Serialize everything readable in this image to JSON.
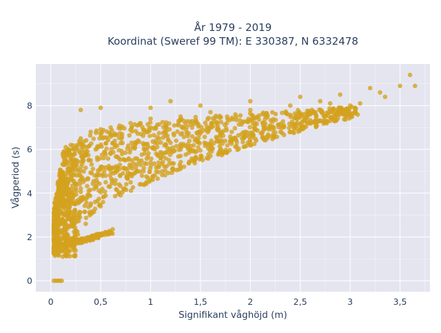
{
  "chart_data": {
    "type": "scatter",
    "title": "År 1979 - 2019",
    "subtitle": "Koordinat (Sweref 99 TM): E 330387, N 6332478",
    "xlabel": "Signifikant våghöjd (m)",
    "ylabel": "Vågperiod (s)",
    "xlim": [
      -0.15,
      3.8
    ],
    "ylim": [
      -0.5,
      9.9
    ],
    "x_ticks": [
      0,
      0.5,
      1,
      1.5,
      2,
      2.5,
      3,
      3.5
    ],
    "x_tick_labels": [
      "0",
      "0,5",
      "1",
      "1,5",
      "2",
      "2,5",
      "3",
      "3,5"
    ],
    "y_ticks": [
      0,
      2,
      4,
      6,
      8
    ],
    "y_tick_labels": [
      "0",
      "2",
      "4",
      "6",
      "8"
    ],
    "grid": true,
    "marker_color": "#d4a21d",
    "background_color": "#e5e5f0",
    "points": [
      [
        0.03,
        0
      ],
      [
        0.05,
        0
      ],
      [
        0.07,
        0
      ],
      [
        0.09,
        0
      ],
      [
        0.11,
        0
      ],
      [
        0.2,
        1.7
      ],
      [
        0.3,
        1.85
      ],
      [
        0.4,
        2.0
      ],
      [
        0.5,
        2.1
      ],
      [
        0.6,
        2.2
      ],
      [
        0.62,
        2.35
      ],
      [
        0.03,
        1.5
      ],
      [
        0.05,
        1.3
      ],
      [
        0.08,
        1.15
      ],
      [
        0.12,
        1.1
      ],
      [
        0.05,
        2.5
      ],
      [
        0.07,
        3.2
      ],
      [
        0.08,
        4.2
      ],
      [
        0.1,
        5.0
      ],
      [
        0.12,
        5.8
      ],
      [
        0.15,
        6.1
      ],
      [
        0.2,
        6.2
      ],
      [
        0.3,
        6.5
      ],
      [
        0.4,
        6.8
      ],
      [
        0.6,
        7.0
      ],
      [
        0.8,
        7.2
      ],
      [
        1.0,
        7.4
      ],
      [
        1.3,
        7.5
      ],
      [
        1.6,
        7.7
      ],
      [
        2.0,
        7.8
      ],
      [
        2.4,
        8.0
      ],
      [
        2.8,
        8.1
      ],
      [
        0.22,
        4.8
      ],
      [
        0.3,
        3.8
      ],
      [
        0.5,
        3.4
      ],
      [
        0.7,
        3.9
      ],
      [
        1.0,
        4.6
      ],
      [
        1.3,
        5.2
      ],
      [
        1.6,
        5.7
      ],
      [
        2.0,
        6.2
      ],
      [
        2.4,
        6.8
      ],
      [
        2.8,
        7.3
      ],
      [
        0.4,
        5.5
      ],
      [
        0.6,
        5.8
      ],
      [
        0.8,
        6.0
      ],
      [
        1.2,
        6.3
      ],
      [
        1.7,
        6.6
      ],
      [
        2.2,
        7.1
      ],
      [
        2.6,
        7.6
      ],
      [
        3.0,
        8.0
      ],
      [
        3.05,
        7.9
      ],
      [
        0.3,
        7.8
      ],
      [
        0.5,
        7.9
      ],
      [
        1.0,
        7.9
      ],
      [
        1.2,
        8.2
      ],
      [
        2.0,
        8.2
      ],
      [
        2.5,
        8.4
      ],
      [
        2.9,
        8.5
      ],
      [
        3.2,
        8.8
      ],
      [
        3.3,
        8.6
      ],
      [
        3.5,
        8.9
      ],
      [
        3.6,
        9.4
      ],
      [
        3.65,
        8.9
      ],
      [
        3.35,
        8.4
      ],
      [
        3.1,
        8.1
      ],
      [
        2.7,
        8.2
      ],
      [
        1.5,
        8.0
      ],
      [
        0.25,
        2.3
      ],
      [
        0.15,
        3.0
      ],
      [
        0.35,
        2.6
      ],
      [
        0.45,
        6.0
      ],
      [
        0.9,
        5.3
      ],
      [
        1.1,
        5.6
      ],
      [
        1.4,
        6.0
      ],
      [
        1.8,
        6.4
      ],
      [
        0.18,
        4.0
      ],
      [
        0.55,
        4.5
      ]
    ]
  }
}
